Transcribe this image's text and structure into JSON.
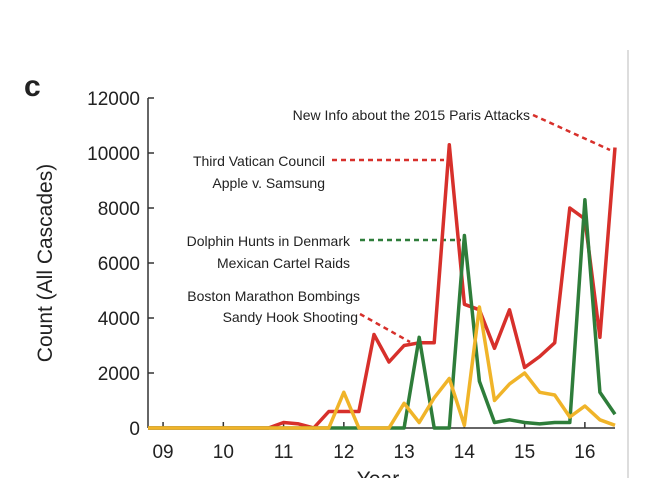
{
  "chart_data": {
    "type": "line",
    "panel_label": "c",
    "x_label": "Year",
    "y_label": "Count (All Cascades)",
    "x": [
      8.75,
      9,
      9.25,
      9.5,
      9.75,
      10,
      10.25,
      10.5,
      10.75,
      11,
      11.25,
      11.5,
      11.75,
      12,
      12.25,
      12.5,
      12.75,
      13,
      13.25,
      13.5,
      13.75,
      14,
      14.25,
      14.5,
      14.75,
      15,
      15.25,
      15.5,
      15.75,
      16,
      16.25,
      16.5
    ],
    "series": [
      {
        "color": "#d7302b",
        "values": [
          0,
          0,
          0,
          0,
          0,
          0,
          0,
          0,
          0,
          200,
          150,
          0,
          600,
          600,
          600,
          3400,
          2400,
          3000,
          3100,
          3100,
          10300,
          4500,
          4300,
          2900,
          4300,
          2200,
          2600,
          3100,
          8000,
          7600,
          3300,
          10200
        ]
      },
      {
        "color": "#2e7d3a",
        "values": [
          0,
          0,
          0,
          0,
          0,
          0,
          0,
          0,
          0,
          0,
          0,
          0,
          0,
          0,
          0,
          0,
          0,
          0,
          3300,
          0,
          0,
          7000,
          1700,
          200,
          300,
          200,
          150,
          200,
          200,
          8300,
          1300,
          500
        ]
      },
      {
        "color": "#f0b429",
        "values": [
          0,
          0,
          0,
          0,
          0,
          0,
          0,
          0,
          0,
          0,
          0,
          0,
          0,
          1300,
          0,
          0,
          0,
          900,
          200,
          1100,
          1800,
          100,
          4400,
          1000,
          1600,
          2000,
          1300,
          1200,
          400,
          800,
          300,
          100
        ]
      }
    ],
    "xlim": [
      8.75,
      16.5
    ],
    "xticks": [
      {
        "value": 9,
        "label": "09"
      },
      10,
      11,
      12,
      13,
      14,
      15,
      16
    ],
    "ylim": [
      0,
      12000
    ],
    "yticks": [
      0,
      2000,
      4000,
      6000,
      8000,
      10000,
      12000
    ],
    "annotations": [
      "New Info about the 2015 Paris Attacks",
      "Third Vatican Council",
      "Apple v. Samsung",
      "Dolphin Hunts in Denmark",
      "Mexican Cartel Raids",
      "Boston Marathon Bombings",
      "Sandy Hook Shooting"
    ]
  }
}
